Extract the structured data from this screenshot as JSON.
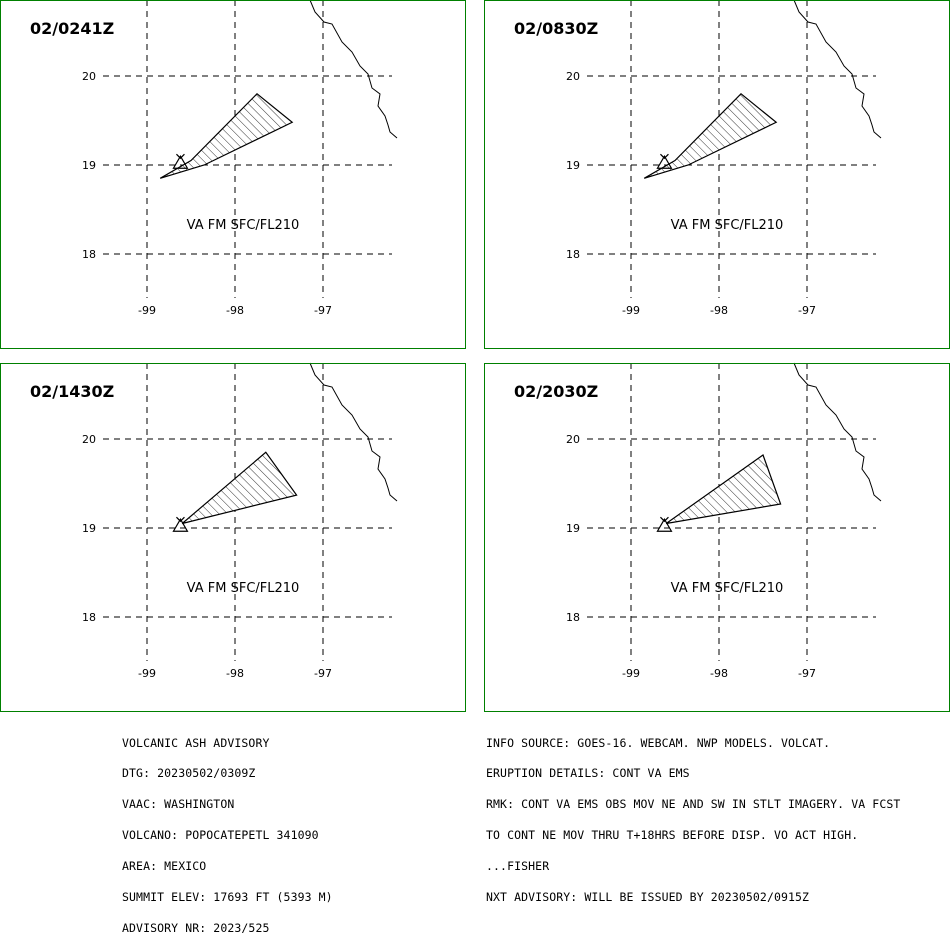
{
  "panels": [
    {
      "time": "02/0241Z",
      "label": "VA FM SFC/FL210",
      "lat_labels": [
        "20",
        "19",
        "18"
      ],
      "lon_labels": [
        "-99",
        "-98",
        "-97"
      ],
      "ash_polygon": [
        [
          -98.85,
          18.85
        ],
        [
          -98.35,
          19.0
        ],
        [
          -97.35,
          19.48
        ],
        [
          -97.75,
          19.8
        ],
        [
          -98.5,
          19.05
        ]
      ]
    },
    {
      "time": "02/0830Z",
      "label": "VA FM SFC/FL210",
      "lat_labels": [
        "20",
        "19",
        "18"
      ],
      "lon_labels": [
        "-99",
        "-98",
        "-97"
      ],
      "ash_polygon": [
        [
          -98.85,
          18.85
        ],
        [
          -98.35,
          19.0
        ],
        [
          -97.35,
          19.48
        ],
        [
          -97.75,
          19.8
        ],
        [
          -98.5,
          19.05
        ]
      ]
    },
    {
      "time": "02/1430Z",
      "label": "VA FM SFC/FL210",
      "lat_labels": [
        "20",
        "19",
        "18"
      ],
      "lon_labels": [
        "-99",
        "-98",
        "-97"
      ],
      "ash_polygon": [
        [
          -98.6,
          19.05
        ],
        [
          -97.3,
          19.37
        ],
        [
          -97.65,
          19.85
        ]
      ]
    },
    {
      "time": "02/2030Z",
      "label": "VA FM SFC/FL210",
      "lat_labels": [
        "20",
        "19",
        "18"
      ],
      "lon_labels": [
        "-99",
        "-98",
        "-97"
      ],
      "ash_polygon": [
        [
          -98.6,
          19.05
        ],
        [
          -97.3,
          19.27
        ],
        [
          -97.5,
          19.82
        ]
      ]
    }
  ],
  "volcano_location": [
    -98.62,
    19.02
  ],
  "advisory_left": [
    "VOLCANIC ASH ADVISORY",
    "DTG: 20230502/0309Z",
    "VAAC: WASHINGTON",
    "VOLCANO: POPOCATEPETL 341090",
    "AREA: MEXICO",
    "SUMMIT ELEV: 17693 FT (5393 M)",
    "ADVISORY NR: 2023/525"
  ],
  "advisory_right": [
    "INFO SOURCE: GOES-16. WEBCAM. NWP MODELS. VOLCAT.",
    "ERUPTION DETAILS: CONT VA EMS",
    "RMK: CONT VA EMS OBS MOV NE AND SW IN STLT IMAGERY. VA FCST",
    "TO CONT NE MOV THRU T+18HRS BEFORE DISP. VO ACT HIGH.",
    "...FISHER",
    "NXT ADVISORY: WILL BE ISSUED BY 20230502/0915Z"
  ]
}
